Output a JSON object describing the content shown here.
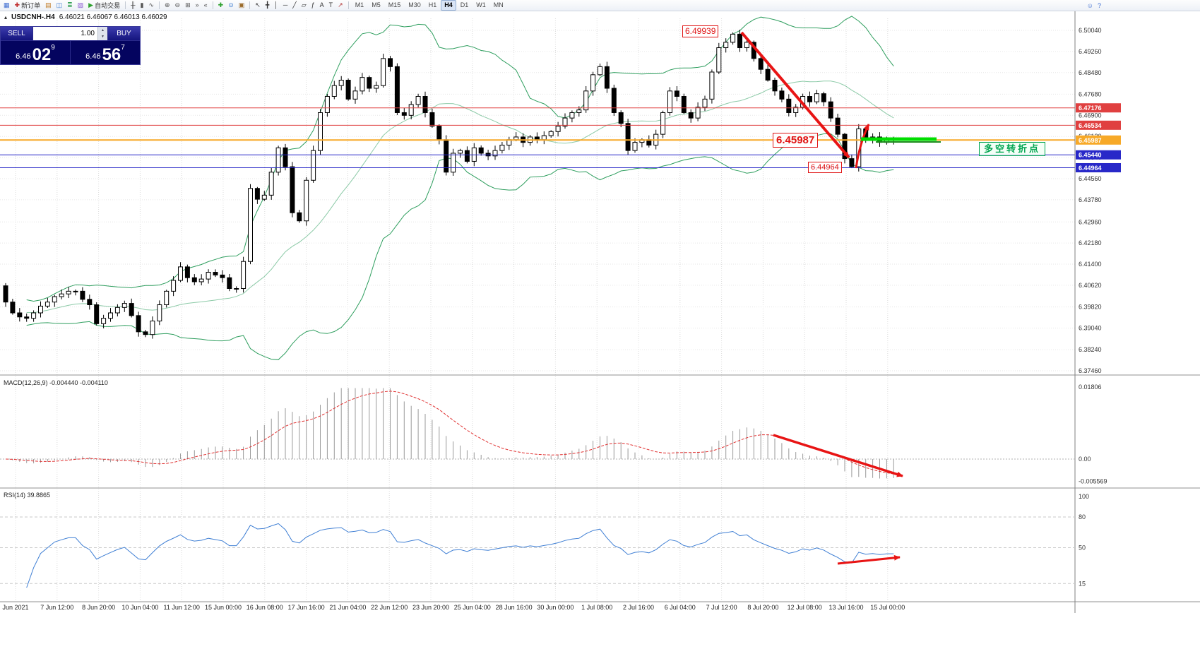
{
  "toolbar": {
    "items": [
      {
        "name": "app-icon",
        "glyph": "▦",
        "color": "#3a6ad0"
      },
      {
        "name": "new-order-button",
        "glyph": "✚",
        "color": "#c03030",
        "label": "新订单"
      },
      {
        "name": "charts-icon",
        "glyph": "▤",
        "color": "#c07820"
      },
      {
        "name": "profiles-icon",
        "glyph": "◫",
        "color": "#3a7ad0"
      },
      {
        "name": "market-watch-icon",
        "glyph": "≣",
        "color": "#2f9e4f"
      },
      {
        "name": "navigator-icon",
        "glyph": "▨",
        "color": "#8a5ad0"
      },
      {
        "name": "auto-trading-button",
        "glyph": "▶",
        "color": "#2fa12f",
        "label": "自动交易"
      },
      {
        "sep": true
      },
      {
        "name": "bar-chart-icon",
        "glyph": "╫",
        "color": "#555555"
      },
      {
        "name": "candlestick-chart-icon",
        "glyph": "▮",
        "color": "#555555"
      },
      {
        "name": "line-chart-icon",
        "glyph": "∿",
        "color": "#555555"
      },
      {
        "sep": true
      },
      {
        "name": "zoom-in-icon",
        "glyph": "⊕",
        "color": "#555555"
      },
      {
        "name": "zoom-out-icon",
        "glyph": "⊖",
        "color": "#555555"
      },
      {
        "name": "tile-windows-icon",
        "glyph": "⊞",
        "color": "#555555"
      },
      {
        "name": "auto-scroll-icon",
        "glyph": "»",
        "color": "#555555"
      },
      {
        "name": "chart-shift-icon",
        "glyph": "«",
        "color": "#555555"
      },
      {
        "sep": true
      },
      {
        "name": "indicators-icon",
        "glyph": "✚",
        "color": "#2fa12f"
      },
      {
        "name": "periods-icon",
        "glyph": "⊙",
        "color": "#3a7ad0"
      },
      {
        "name": "templates-icon",
        "glyph": "▣",
        "color": "#9a6a2a"
      },
      {
        "sep": true
      },
      {
        "name": "cursor-icon",
        "glyph": "↖",
        "color": "#333333"
      },
      {
        "name": "crosshair-icon",
        "glyph": "╋",
        "color": "#333333"
      },
      {
        "name": "vertical-line-icon",
        "glyph": "│",
        "color": "#333333"
      },
      {
        "name": "horizontal-line-icon",
        "glyph": "─",
        "color": "#333333"
      },
      {
        "name": "trendline-icon",
        "glyph": "╱",
        "color": "#333333"
      },
      {
        "name": "channel-icon",
        "glyph": "▱",
        "color": "#333333"
      },
      {
        "name": "fibonacci-icon",
        "glyph": "ƒ",
        "color": "#333333"
      },
      {
        "name": "text-icon",
        "glyph": "A",
        "color": "#333333"
      },
      {
        "name": "label-icon",
        "glyph": "T",
        "color": "#333333"
      },
      {
        "name": "arrow-tools-icon",
        "glyph": "↗",
        "color": "#b03030"
      },
      {
        "sep": true
      }
    ],
    "timeframes": [
      "M1",
      "M5",
      "M15",
      "M30",
      "H1",
      "H4",
      "D1",
      "W1",
      "MN"
    ],
    "active_timeframe": "H4",
    "right_items": [
      {
        "name": "community-icon",
        "glyph": "☺",
        "color": "#3a6ad0"
      },
      {
        "name": "help-icon",
        "glyph": "?",
        "color": "#3a6ad0"
      }
    ]
  },
  "symbol_header": {
    "symbol": "USDCNH-.H4",
    "ohlc": "6.46021 6.46067 6.46013 6.46029"
  },
  "trade_panel": {
    "sell_label": "SELL",
    "buy_label": "BUY",
    "volume": "1.00",
    "bid_prefix": "6.46",
    "bid_big": "02",
    "bid_sup": "9",
    "ask_prefix": "6.46",
    "ask_big": "56",
    "ask_sup": "7"
  },
  "indicators": {
    "macd_label": "MACD(12,26,9) -0.004440 -0.004110",
    "rsi_label": "RSI(14) 39.8865"
  },
  "annotations": {
    "peak_price": "6.49939",
    "current_price": "6.45987",
    "support_price": "6.44964",
    "turning_point": "多空转折点",
    "arrow_color": "#e81414",
    "highlight_color": "#00dd00"
  },
  "chart_data": {
    "type": "candlestick",
    "symbol": "USDCNH-.H4",
    "timeframe": "H4",
    "ylim": [
      6.3746,
      6.5004
    ],
    "price_ticks": [
      "6.50040",
      "6.49260",
      "6.48480",
      "6.47680",
      "6.46900",
      "6.46120",
      "6.45340",
      "6.44560",
      "6.43780",
      "6.42960",
      "6.42180",
      "6.41400",
      "6.40620",
      "6.39820",
      "6.39040",
      "6.38240",
      "6.37460"
    ],
    "closes": [
      6.406,
      6.4,
      6.396,
      6.3945,
      6.394,
      6.396,
      6.3985,
      6.4,
      6.402,
      6.403,
      6.404,
      6.404,
      6.401,
      6.399,
      6.392,
      6.394,
      6.396,
      6.398,
      6.3995,
      6.395,
      6.389,
      6.388,
      6.393,
      6.399,
      6.404,
      6.408,
      6.413,
      6.409,
      6.4075,
      6.4085,
      6.411,
      6.41,
      6.409,
      6.405,
      6.405,
      6.415,
      6.442,
      6.438,
      6.4395,
      6.448,
      6.457,
      6.45,
      6.433,
      6.43,
      6.445,
      6.456,
      6.47,
      6.476,
      6.48,
      6.482,
      6.475,
      6.478,
      6.483,
      6.479,
      6.48,
      6.49,
      6.487,
      6.47,
      6.469,
      6.473,
      6.476,
      6.47,
      6.465,
      6.46,
      6.448,
      6.455,
      6.456,
      6.452,
      6.457,
      6.455,
      6.454,
      6.456,
      6.458,
      6.46,
      6.461,
      6.459,
      6.461,
      6.46,
      6.4615,
      6.463,
      6.465,
      6.468,
      6.47,
      6.471,
      6.478,
      6.484,
      6.487,
      6.479,
      6.47,
      6.466,
      6.456,
      6.459,
      6.46,
      6.458,
      6.462,
      6.47,
      6.478,
      6.476,
      6.47,
      6.468,
      6.472,
      6.475,
      6.485,
      6.494,
      6.496,
      6.499,
      6.494,
      6.496,
      6.49,
      6.486,
      6.482,
      6.478,
      6.475,
      6.47,
      6.472,
      6.476,
      6.474,
      6.477,
      6.474,
      6.468,
      6.462,
      6.453,
      6.45,
      6.464,
      6.46,
      6.461,
      6.459,
      6.46,
      6.46
    ],
    "bollinger": {
      "period": 20,
      "deviation": 2,
      "color": "#2e9e5e"
    },
    "levels": [
      {
        "price": 6.47176,
        "label": "6.47176",
        "color": "#e04040"
      },
      {
        "price": 6.46534,
        "label": "6.46534",
        "color": "#e04040"
      },
      {
        "price": 6.45987,
        "label": "6.45987",
        "color": "#f7a928",
        "current": true
      },
      {
        "price": 6.4544,
        "label": "6.45440",
        "color": "#2828c8"
      },
      {
        "price": 6.44964,
        "label": "6.44964",
        "color": "#2828c8"
      }
    ],
    "time_labels": [
      "Jun 2021",
      "7 Jun 12:00",
      "8 Jun 20:00",
      "10 Jun 04:00",
      "11 Jun 12:00",
      "15 Jun 00:00",
      "16 Jun 08:00",
      "17 Jun 16:00",
      "21 Jun 04:00",
      "22 Jun 12:00",
      "23 Jun 20:00",
      "25 Jun 04:00",
      "28 Jun 16:00",
      "30 Jun 00:00",
      "1 Jul 08:00",
      "2 Jul 16:00",
      "6 Jul 04:00",
      "7 Jul 12:00",
      "8 Jul 20:00",
      "12 Jul 08:00",
      "13 Jul 16:00",
      "15 Jul 00:00"
    ],
    "macd": {
      "fast": 12,
      "slow": 26,
      "signal": 9,
      "ticks": [
        "0.01806",
        "0.00",
        "-0.005569"
      ]
    },
    "rsi": {
      "period": 14,
      "ticks": [
        "100",
        "80",
        "50",
        "15"
      ],
      "levels": [
        80,
        50,
        15
      ]
    }
  }
}
